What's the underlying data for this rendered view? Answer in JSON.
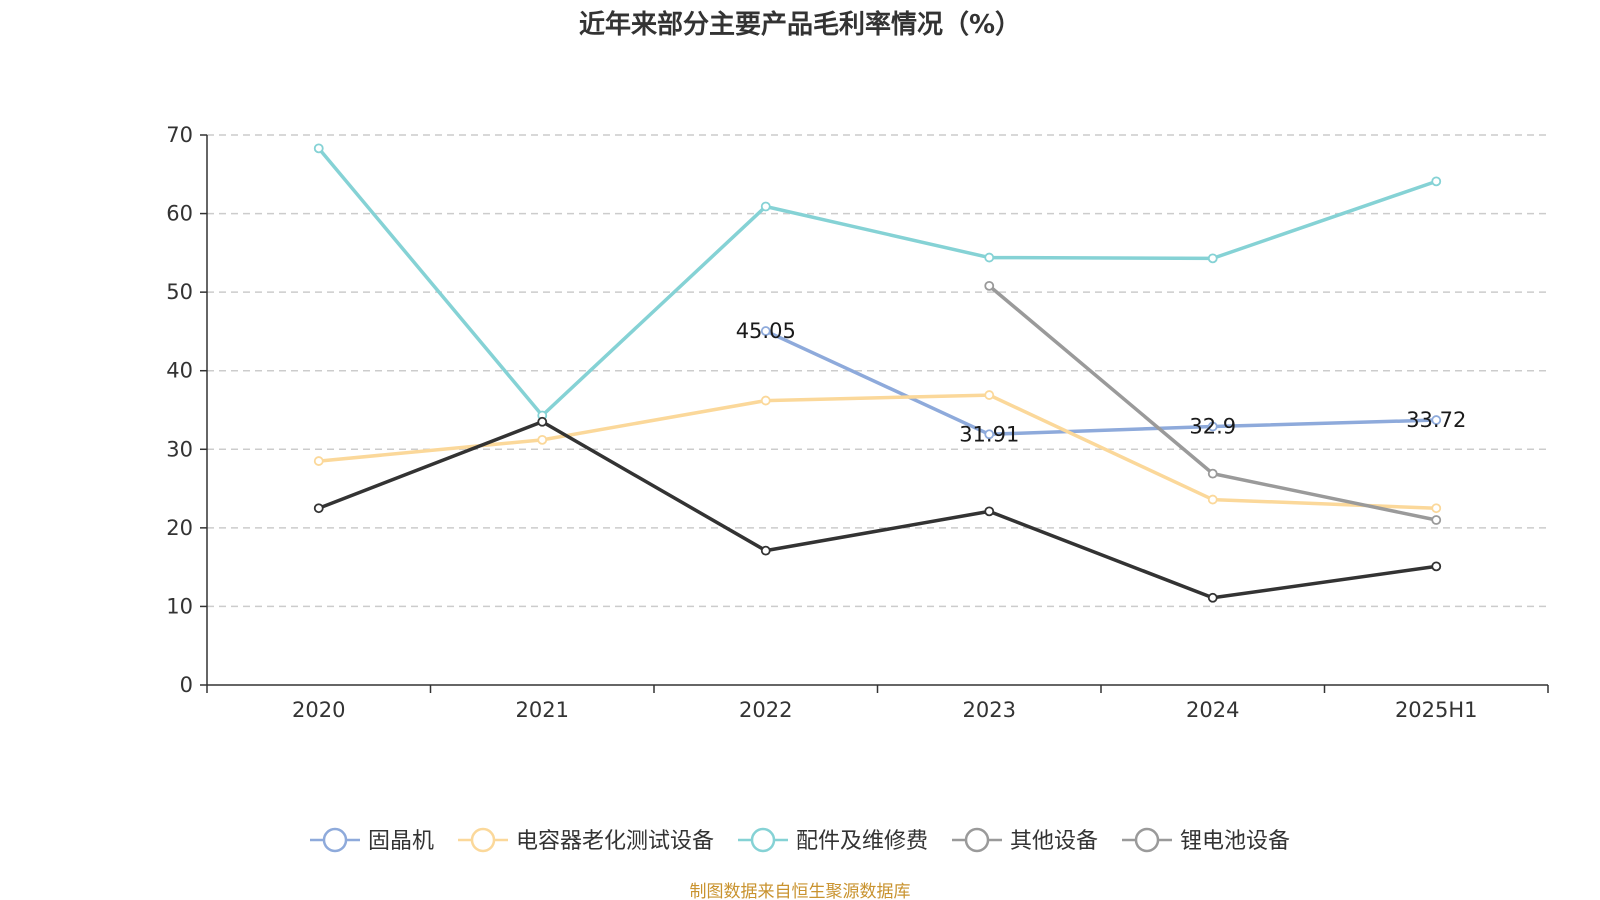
{
  "chart_data": {
    "type": "line",
    "title": "近年来部分主要产品毛利率情况（%）",
    "categories": [
      "2020",
      "2021",
      "2022",
      "2023",
      "2024",
      "2025H1"
    ],
    "ylim": [
      0,
      70
    ],
    "yticks": [
      0,
      10,
      20,
      30,
      40,
      50,
      60,
      70
    ],
    "grid": true,
    "legend_position": "bottom",
    "series": [
      {
        "name": "固晶机",
        "color": "#8eaadb",
        "values": [
          null,
          null,
          45.05,
          31.91,
          32.9,
          33.72
        ],
        "labels": [
          "",
          "",
          "45.05",
          "31.91",
          "32.9",
          "33.72"
        ]
      },
      {
        "name": "电容器老化测试设备",
        "color": "#fbd89a",
        "values": [
          28.5,
          31.2,
          36.2,
          36.9,
          23.6,
          22.5
        ],
        "labels": [
          "",
          "",
          "",
          "",
          "",
          ""
        ]
      },
      {
        "name": "配件及维修费",
        "color": "#85d2d5",
        "values": [
          68.3,
          34.3,
          60.9,
          54.4,
          54.3,
          64.1
        ],
        "labels": [
          "",
          "",
          "",
          "",
          "",
          ""
        ]
      },
      {
        "name": "其他设备",
        "color": "#9a9a9a",
        "values": [
          null,
          null,
          null,
          50.8,
          26.9,
          21.0
        ],
        "labels": [
          "",
          "",
          "",
          "",
          "",
          ""
        ]
      },
      {
        "name": "锂电池设备",
        "color": "#333333",
        "legend_color": "#9a9a9a",
        "values": [
          22.5,
          33.5,
          17.1,
          22.1,
          11.1,
          15.1
        ],
        "labels": [
          "",
          "",
          "",
          "",
          "",
          ""
        ]
      }
    ],
    "source": "制图数据来自恒生聚源数据库"
  }
}
